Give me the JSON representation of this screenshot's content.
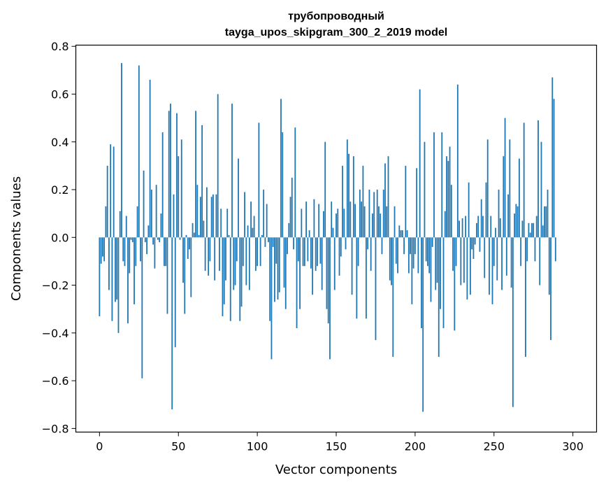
{
  "chart_data": {
    "type": "bar",
    "title": "трубопроводный",
    "subtitle": "tayga_upos_skipgram_300_2_2019 model",
    "xlabel": "Vector components",
    "ylabel": "Components values",
    "xlim": [
      -15,
      315
    ],
    "ylim": [
      -0.815,
      0.805
    ],
    "xticks": [
      0,
      50,
      100,
      150,
      200,
      250,
      300
    ],
    "xtick_labels": [
      "0",
      "50",
      "100",
      "150",
      "200",
      "250",
      "300"
    ],
    "yticks": [
      0.8,
      0.6,
      0.4,
      0.2,
      0.0,
      -0.2,
      -0.4,
      -0.6,
      -0.8
    ],
    "ytick_labels": [
      "0.8",
      "0.6",
      "0.4",
      "0.2",
      "0.0",
      "−0.2",
      "−0.4",
      "−0.6",
      "−0.8"
    ],
    "grid": false,
    "bar_color": "#1f77b4",
    "values": [
      -0.33,
      -0.11,
      -0.08,
      -0.1,
      0.13,
      0.3,
      -0.22,
      0.39,
      -0.35,
      0.38,
      -0.27,
      -0.26,
      -0.4,
      0.11,
      0.73,
      -0.1,
      -0.12,
      0.09,
      -0.36,
      -0.15,
      -0.01,
      -0.02,
      -0.28,
      -0.12,
      0.13,
      0.72,
      -0.1,
      -0.59,
      0.28,
      -0.02,
      -0.07,
      0.05,
      0.66,
      0.2,
      -0.03,
      -0.13,
      0.22,
      -0.01,
      -0.02,
      0.1,
      0.44,
      -0.12,
      -0.12,
      -0.32,
      0.53,
      0.56,
      -0.72,
      0.18,
      -0.46,
      0.52,
      0.34,
      -0.01,
      0.41,
      -0.19,
      -0.32,
      0.01,
      -0.09,
      -0.05,
      -0.25,
      0.06,
      0.02,
      0.53,
      0.22,
      0.01,
      0.17,
      0.47,
      0.07,
      -0.14,
      0.21,
      -0.16,
      -0.1,
      0.17,
      0.18,
      -0.18,
      0.18,
      0.6,
      -0.14,
      0.12,
      -0.33,
      -0.28,
      -0.18,
      0.12,
      0.01,
      -0.35,
      0.56,
      -0.22,
      -0.2,
      -0.1,
      0.33,
      -0.35,
      -0.29,
      -0.12,
      0.19,
      -0.2,
      0.05,
      -0.22,
      0.15,
      0.04,
      0.09,
      -0.14,
      -0.12,
      0.48,
      -0.12,
      0.01,
      0.2,
      -0.04,
      0.14,
      -0.02,
      -0.35,
      -0.51,
      -0.04,
      -0.27,
      -0.11,
      -0.26,
      -0.23,
      0.58,
      0.44,
      -0.21,
      -0.3,
      -0.07,
      0.06,
      0.17,
      0.25,
      -0.05,
      0.46,
      -0.38,
      -0.1,
      -0.3,
      0.12,
      -0.12,
      -0.12,
      0.15,
      -0.1,
      0.03,
      -0.13,
      -0.24,
      0.16,
      -0.14,
      -0.12,
      0.14,
      -0.11,
      -0.22,
      0.11,
      0.4,
      -0.3,
      -0.36,
      -0.51,
      0.15,
      0.04,
      -0.22,
      0.1,
      0.12,
      -0.16,
      -0.08,
      0.3,
      0.12,
      -0.05,
      0.41,
      0.35,
      0.15,
      -0.24,
      0.34,
      0.14,
      -0.34,
      -0.12,
      0.2,
      0.15,
      0.3,
      0.13,
      -0.34,
      -0.05,
      0.2,
      -0.14,
      0.1,
      0.19,
      -0.43,
      0.2,
      0.13,
      0.1,
      -0.07,
      0.2,
      0.31,
      0.13,
      0.34,
      -0.18,
      -0.2,
      -0.5,
      0.13,
      -0.11,
      -0.15,
      0.05,
      0.03,
      0.03,
      -0.07,
      0.3,
      0.03,
      -0.15,
      -0.07,
      -0.28,
      -0.13,
      -0.07,
      0.29,
      -0.15,
      0.62,
      -0.38,
      -0.73,
      0.4,
      -0.1,
      -0.12,
      -0.15,
      -0.27,
      -0.04,
      0.44,
      -0.22,
      -0.19,
      -0.5,
      -0.3,
      0.44,
      -0.38,
      0.11,
      0.34,
      0.32,
      0.38,
      0.22,
      -0.14,
      -0.39,
      -0.12,
      0.64,
      0.07,
      -0.2,
      0.08,
      -0.19,
      0.09,
      -0.26,
      0.23,
      -0.24,
      -0.05,
      -0.09,
      -0.03,
      0.06,
      0.09,
      -0.06,
      0.16,
      0.09,
      -0.17,
      0.23,
      0.41,
      -0.24,
      0.09,
      -0.28,
      -0.12,
      0.04,
      -0.18,
      0.2,
      0.08,
      -0.22,
      0.34,
      0.5,
      -0.16,
      0.18,
      0.41,
      -0.21,
      -0.71,
      0.1,
      0.14,
      0.13,
      0.33,
      -0.12,
      0.07,
      0.48,
      -0.5,
      -0.1,
      0.06,
      0.02,
      0.06,
      0.06,
      -0.1,
      0.09,
      0.49,
      -0.2,
      0.4,
      0.05,
      0.13,
      0.13,
      0.2,
      -0.24,
      -0.43,
      0.67,
      0.58,
      -0.1
    ]
  }
}
